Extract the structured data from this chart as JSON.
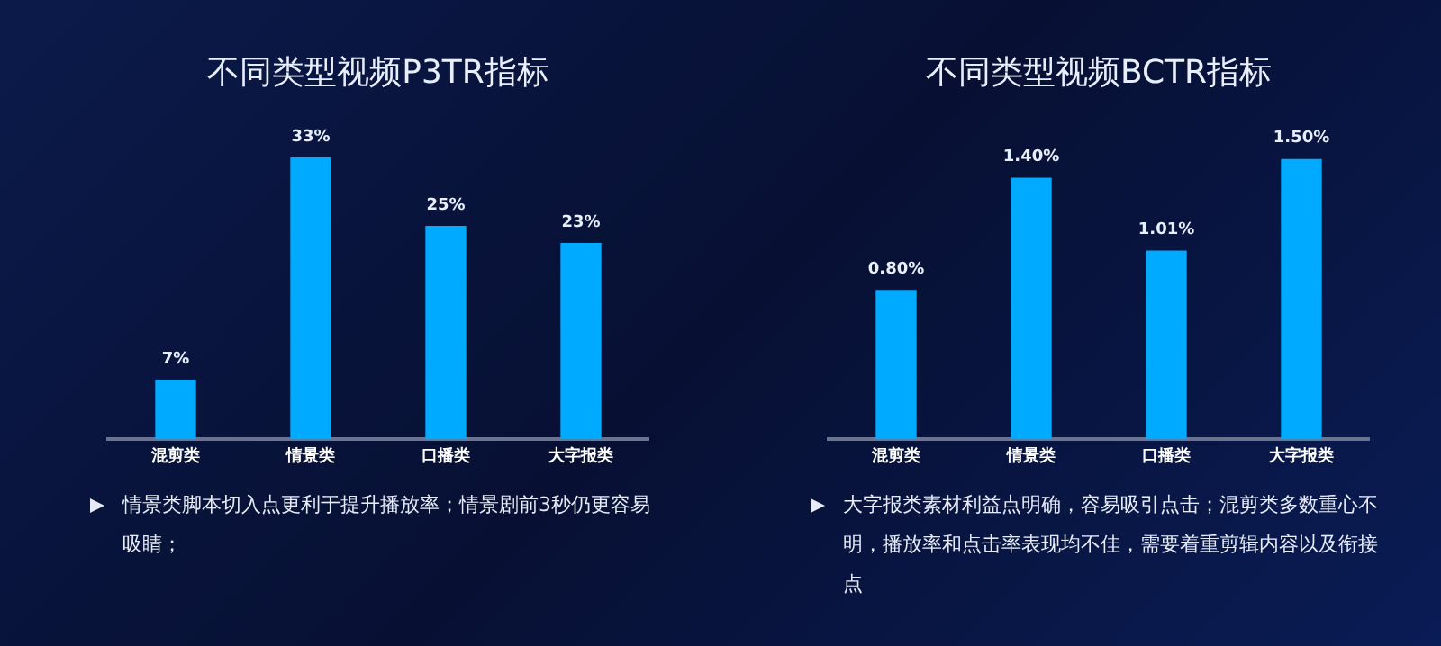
{
  "chart_data": [
    {
      "type": "bar",
      "title": "不同类型视频P3TR指标",
      "categories": [
        "混剪类",
        "情景类",
        "口播类",
        "大字报类"
      ],
      "values": [
        7,
        33,
        25,
        23
      ],
      "value_labels": [
        "7%",
        "33%",
        "25%",
        "23%"
      ],
      "color": "#00aaff",
      "annotations": [
        "情景类脚本切入点更利于提升播放率；情景剧前3秒仍更容易吸睛；"
      ]
    },
    {
      "type": "bar",
      "title": "不同类型视频BCTR指标",
      "categories": [
        "混剪类",
        "情景类",
        "口播类",
        "大字报类"
      ],
      "values": [
        0.8,
        1.4,
        1.01,
        1.5
      ],
      "value_labels": [
        "0.80%",
        "1.40%",
        "1.01%",
        "1.50%"
      ],
      "color": "#00aaff",
      "annotations": [
        "大字报类素材利益点明确，容易吸引点击；混剪类多数重心不明，播放率和点击率表现均不佳，需要着重剪辑内容以及衔接点"
      ]
    }
  ]
}
